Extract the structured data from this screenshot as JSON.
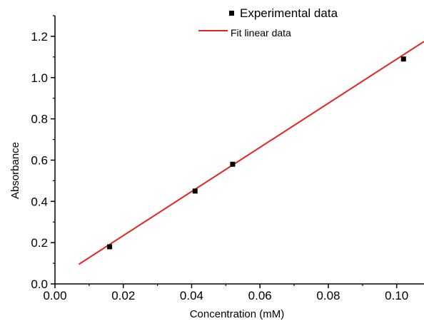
{
  "chart_data": {
    "type": "scatter",
    "xlabel": "Concentration (mM)",
    "ylabel": "Absorbance",
    "xlim": [
      0.0,
      0.108
    ],
    "ylim": [
      0.0,
      1.3
    ],
    "x_ticks": [
      0.0,
      0.02,
      0.04,
      0.06,
      0.08,
      0.1
    ],
    "x_tick_labels": [
      "0.00",
      "0.02",
      "0.04",
      "0.06",
      "0.08",
      "0.10"
    ],
    "y_ticks": [
      0.0,
      0.2,
      0.4,
      0.6,
      0.8,
      1.0,
      1.2
    ],
    "y_tick_labels": [
      "0.0",
      "0.2",
      "0.4",
      "0.6",
      "0.8",
      "1.0",
      "1.2"
    ],
    "grid": false,
    "legend_position": "top-center",
    "series": [
      {
        "name": "Experimental data",
        "kind": "scatter",
        "marker": "square",
        "color": "#000000",
        "x": [
          0.016,
          0.041,
          0.052,
          0.102
        ],
        "y": [
          0.18,
          0.45,
          0.58,
          1.09
        ]
      },
      {
        "name": "Fit linear data",
        "kind": "line",
        "color": "#e8231e",
        "x": [
          0.007,
          0.108
        ],
        "y": [
          0.095,
          1.175
        ]
      }
    ]
  }
}
